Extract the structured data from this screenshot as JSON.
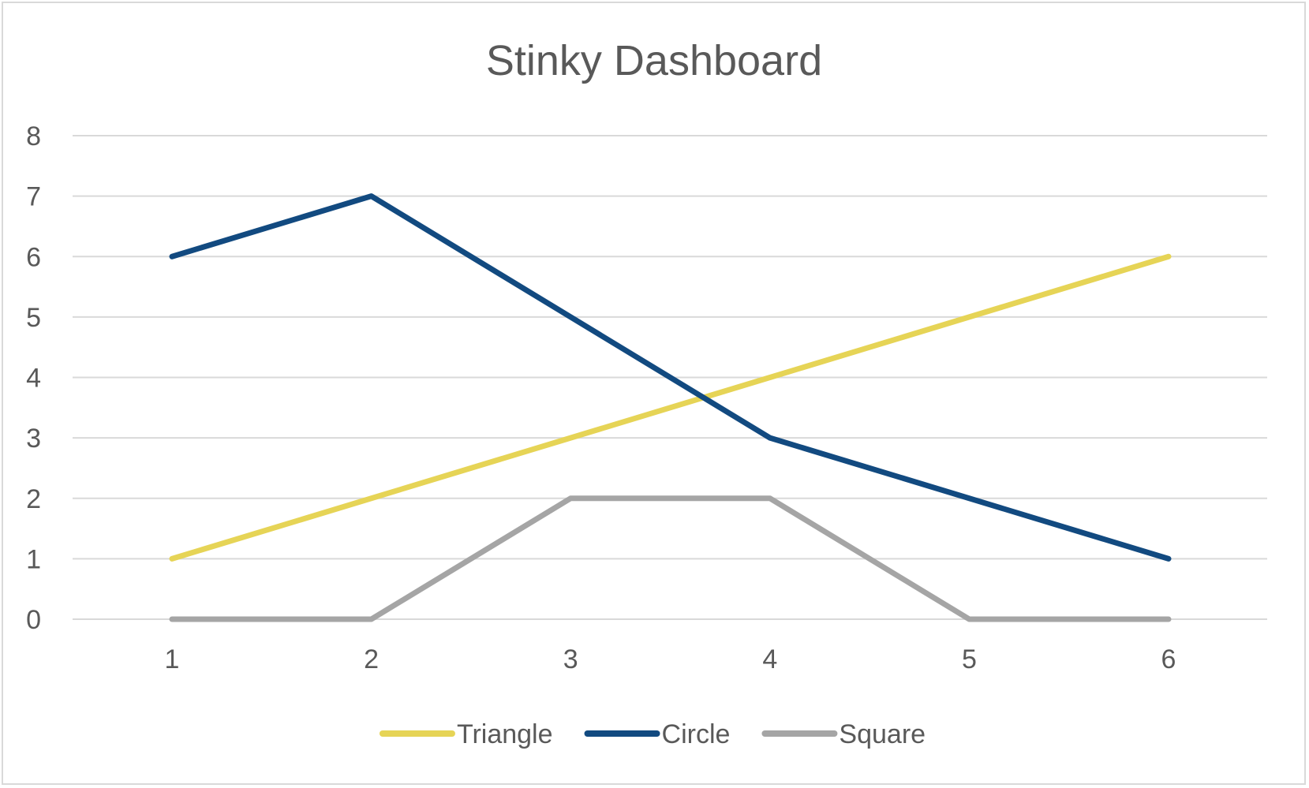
{
  "chart_data": {
    "type": "line",
    "title": "Stinky Dashboard",
    "xlabel": "",
    "ylabel": "",
    "categories": [
      "1",
      "2",
      "3",
      "4",
      "5",
      "6"
    ],
    "ylim": [
      0,
      8
    ],
    "yticks": [
      "0",
      "1",
      "2",
      "3",
      "4",
      "5",
      "6",
      "7",
      "8"
    ],
    "grid": true,
    "legend_position": "bottom",
    "series": [
      {
        "name": "Triangle",
        "color": "#e6d456",
        "values": [
          1,
          2,
          3,
          4,
          5,
          6
        ]
      },
      {
        "name": "Circle",
        "color": "#124a80",
        "values": [
          6,
          7,
          5,
          3,
          2,
          1
        ]
      },
      {
        "name": "Square",
        "color": "#a5a5a5",
        "values": [
          0,
          0,
          2,
          2,
          0,
          0
        ]
      }
    ]
  }
}
